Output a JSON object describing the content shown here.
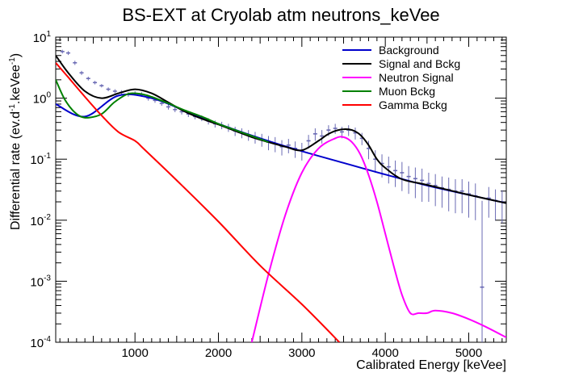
{
  "chart_data": {
    "type": "line",
    "title": "BS-EXT at Cryolab atm neutrons_keVee",
    "xlabel": "Calibrated Energy [keVee]",
    "ylabel": "Differential rate (ev.d",
    "ylabel_sup1": "-1",
    "ylabel_mid": ".keVee",
    "ylabel_sup2": "-1",
    "ylabel_end": ")",
    "xlim": [
      50,
      5450
    ],
    "ylim": [
      0.0001,
      10
    ],
    "yscale": "log",
    "x_ticks": [
      1000,
      2000,
      3000,
      4000,
      5000
    ],
    "x_tick_labels": [
      "1000",
      "2000",
      "3000",
      "4000",
      "5000"
    ],
    "y_ticks": [
      0.0001,
      0.001,
      0.01,
      0.1,
      1,
      10
    ],
    "y_tick_labels": [
      {
        "base": "10",
        "exp": "-4"
      },
      {
        "base": "10",
        "exp": "-3"
      },
      {
        "base": "10",
        "exp": "-2"
      },
      {
        "base": "10",
        "exp": "-1"
      },
      {
        "base": "10",
        "exp": "0"
      },
      {
        "base": "10",
        "exp": "1"
      }
    ],
    "grid": false,
    "legend_position": "top-right",
    "series": [
      {
        "name": "Background",
        "color": "#0000cc",
        "x": [
          50,
          400,
          800,
          1200,
          1600,
          2000,
          2500,
          3000,
          3500,
          4000,
          4500,
          5000,
          5450
        ],
        "y": [
          0.8,
          0.5,
          1.1,
          1.0,
          0.62,
          0.38,
          0.22,
          0.135,
          0.087,
          0.056,
          0.037,
          0.026,
          0.019
        ]
      },
      {
        "name": "Signal and Bckg",
        "color": "#000000",
        "x": [
          50,
          200,
          400,
          600,
          800,
          1000,
          1200,
          1400,
          1600,
          1800,
          2000,
          2200,
          2400,
          2600,
          2800,
          3000,
          3200,
          3300,
          3400,
          3500,
          3600,
          3700,
          3800,
          3900,
          4000,
          4200,
          4500,
          5000,
          5450
        ],
        "y": [
          5.0,
          2.6,
          1.3,
          1.0,
          1.2,
          1.4,
          1.2,
          0.85,
          0.6,
          0.46,
          0.37,
          0.29,
          0.23,
          0.19,
          0.16,
          0.14,
          0.2,
          0.25,
          0.29,
          0.31,
          0.3,
          0.25,
          0.17,
          0.1,
          0.072,
          0.047,
          0.038,
          0.026,
          0.019
        ]
      },
      {
        "name": "Neutron Signal",
        "color": "#ff00ff",
        "x": [
          2400,
          2600,
          2800,
          3000,
          3200,
          3400,
          3500,
          3600,
          3700,
          3800,
          3900,
          4000,
          4100,
          4200,
          4300,
          4400,
          4500,
          4600,
          4800,
          5000,
          5200,
          5450
        ],
        "y": [
          0.0001,
          0.0013,
          0.012,
          0.06,
          0.15,
          0.22,
          0.23,
          0.19,
          0.12,
          0.055,
          0.02,
          0.006,
          0.0018,
          0.0006,
          0.0003,
          0.0003,
          0.0003,
          0.00033,
          0.0003,
          0.00024,
          0.00018,
          0.00012
        ]
      },
      {
        "name": "Muon Bckg",
        "color": "#008000",
        "x": [
          50,
          150,
          250,
          350,
          450,
          600,
          750,
          900,
          1000,
          1100,
          1200,
          1400,
          1600,
          1800,
          2000,
          2200,
          2400,
          2600
        ],
        "y": [
          2.0,
          1.0,
          0.64,
          0.5,
          0.48,
          0.55,
          0.85,
          1.15,
          1.2,
          1.15,
          1.05,
          0.82,
          0.63,
          0.5,
          0.38,
          0.3,
          0.24,
          0.19
        ]
      },
      {
        "name": "Gamma Bckg",
        "color": "#ff0000",
        "x": [
          50,
          200,
          400,
          600,
          800,
          1000,
          1100,
          1500,
          2000,
          2500,
          3000,
          3450
        ],
        "y": [
          3.8,
          2.2,
          1.05,
          0.52,
          0.28,
          0.2,
          0.15,
          0.045,
          0.0095,
          0.0018,
          0.00042,
          0.0001
        ]
      }
    ],
    "data_points": {
      "name": "data",
      "color": "#6a6ab4",
      "x": [
        130,
        200,
        280,
        360,
        440,
        520,
        600,
        680,
        760,
        840,
        920,
        1000,
        1080,
        1160,
        1240,
        1320,
        1400,
        1480,
        1560,
        1640,
        1720,
        1800,
        1880,
        1960,
        2040,
        2120,
        2200,
        2280,
        2360,
        2440,
        2520,
        2600,
        2680,
        2760,
        2840,
        2920,
        3000,
        3080,
        3160,
        3240,
        3320,
        3400,
        3480,
        3560,
        3640,
        3720,
        3800,
        3880,
        3960,
        4040,
        4120,
        4200,
        4280,
        4360,
        4440,
        4520,
        4600,
        4680,
        4760,
        4840,
        4920,
        5000,
        5080,
        5160,
        5240,
        5320,
        5400
      ],
      "y": [
        5.8,
        5.5,
        3.8,
        2.6,
        2.1,
        1.8,
        1.6,
        1.4,
        1.3,
        1.25,
        1.15,
        1.2,
        1.15,
        1.0,
        0.92,
        0.82,
        0.72,
        0.65,
        0.6,
        0.55,
        0.5,
        0.47,
        0.42,
        0.38,
        0.36,
        0.33,
        0.29,
        0.27,
        0.25,
        0.23,
        0.21,
        0.19,
        0.18,
        0.16,
        0.17,
        0.15,
        0.14,
        0.2,
        0.26,
        0.24,
        0.3,
        0.32,
        0.28,
        0.3,
        0.27,
        0.22,
        0.15,
        0.1,
        0.085,
        0.075,
        0.065,
        0.06,
        0.052,
        0.048,
        0.045,
        0.04,
        0.037,
        0.034,
        0.032,
        0.03,
        0.03,
        0.027,
        0.025,
        0.0008,
        0.023,
        0.021,
        0.02
      ],
      "err_lo": [
        0.4,
        0.4,
        0.3,
        0.2,
        0.15,
        0.12,
        0.1,
        0.1,
        0.1,
        0.1,
        0.1,
        0.1,
        0.1,
        0.09,
        0.08,
        0.07,
        0.07,
        0.06,
        0.06,
        0.06,
        0.05,
        0.05,
        0.05,
        0.05,
        0.05,
        0.05,
        0.05,
        0.05,
        0.05,
        0.05,
        0.05,
        0.05,
        0.05,
        0.045,
        0.045,
        0.045,
        0.045,
        0.05,
        0.06,
        0.06,
        0.06,
        0.06,
        0.06,
        0.06,
        0.06,
        0.05,
        0.05,
        0.04,
        0.035,
        0.035,
        0.03,
        0.03,
        0.025,
        0.025,
        0.025,
        0.02,
        0.02,
        0.018,
        0.018,
        0.017,
        0.017,
        0.016,
        0.015,
        0.0007,
        0.012,
        0.011,
        0.011
      ],
      "err_hi": [
        0.4,
        0.4,
        0.3,
        0.2,
        0.15,
        0.12,
        0.1,
        0.1,
        0.1,
        0.1,
        0.1,
        0.1,
        0.1,
        0.09,
        0.08,
        0.07,
        0.07,
        0.06,
        0.06,
        0.06,
        0.05,
        0.05,
        0.05,
        0.05,
        0.05,
        0.05,
        0.05,
        0.05,
        0.05,
        0.05,
        0.05,
        0.05,
        0.05,
        0.045,
        0.045,
        0.045,
        0.045,
        0.05,
        0.06,
        0.06,
        0.06,
        0.06,
        0.06,
        0.06,
        0.06,
        0.05,
        0.05,
        0.04,
        0.035,
        0.035,
        0.03,
        0.03,
        0.025,
        0.025,
        0.025,
        0.02,
        0.02,
        0.018,
        0.018,
        0.017,
        0.017,
        0.016,
        0.015,
        0.02,
        0.012,
        0.011,
        0.011
      ]
    }
  }
}
